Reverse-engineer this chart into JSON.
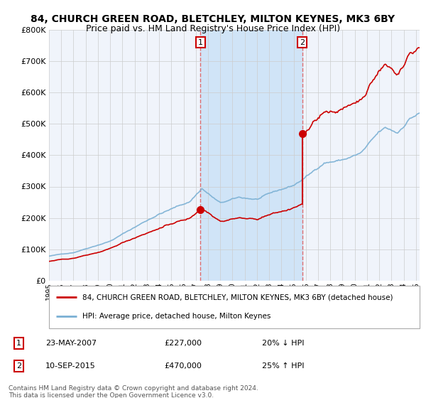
{
  "title": "84, CHURCH GREEN ROAD, BLETCHLEY, MILTON KEYNES, MK3 6BY",
  "subtitle": "Price paid vs. HM Land Registry's House Price Index (HPI)",
  "ylim": [
    0,
    800000
  ],
  "yticks": [
    0,
    100000,
    200000,
    300000,
    400000,
    500000,
    600000,
    700000,
    800000
  ],
  "ytick_labels": [
    "£0",
    "£100K",
    "£200K",
    "£300K",
    "£400K",
    "£500K",
    "£600K",
    "£700K",
    "£800K"
  ],
  "background_color": "#ffffff",
  "plot_bg_color": "#f0f4fb",
  "grid_color": "#cccccc",
  "shade_color": "#d0e4f7",
  "hpi_color": "#7ab0d4",
  "price_color": "#cc0000",
  "sale1_date_num": 2007.39,
  "sale1_price": 227000,
  "sale2_date_num": 2015.71,
  "sale2_price": 470000,
  "dashed_line_color": "#e06060",
  "legend_entries": [
    "84, CHURCH GREEN ROAD, BLETCHLEY, MILTON KEYNES, MK3 6BY (detached house)",
    "HPI: Average price, detached house, Milton Keynes"
  ],
  "annotation1": {
    "num": "1",
    "date": "23-MAY-2007",
    "price": "£227,000",
    "pct": "20% ↓ HPI"
  },
  "annotation2": {
    "num": "2",
    "date": "10-SEP-2015",
    "price": "£470,000",
    "pct": "25% ↑ HPI"
  },
  "footer": "Contains HM Land Registry data © Crown copyright and database right 2024.\nThis data is licensed under the Open Government Licence v3.0.",
  "title_fontsize": 10,
  "subtitle_fontsize": 9,
  "xmin": 1995,
  "xmax": 2025.3
}
